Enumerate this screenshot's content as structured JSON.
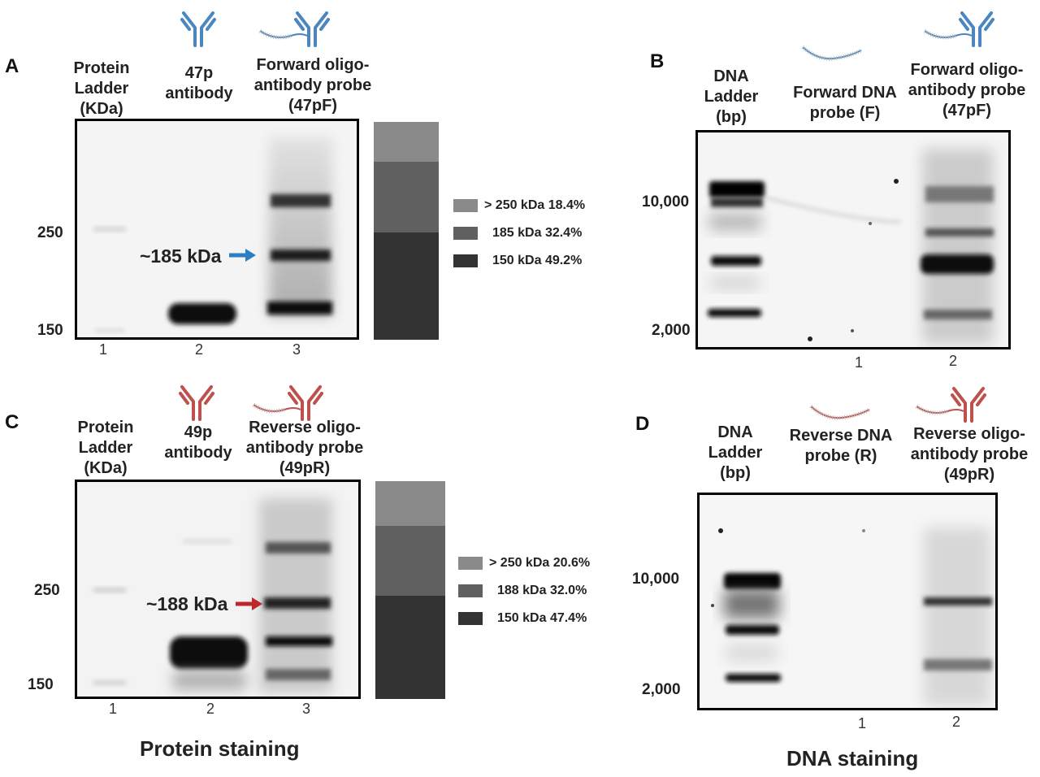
{
  "panels": {
    "A": {
      "letter": "A",
      "headers": {
        "ladder": "Protein\nLadder\n(KDa)",
        "lane2": "47p\nantibody",
        "lane3": "Forward oligo-\nantibody probe\n(47pF)"
      },
      "lanes": [
        "1",
        "2",
        "3"
      ],
      "markers": [
        "250",
        "150"
      ],
      "callout": "~185 kDa",
      "arrow_color": "#2b7fc4",
      "icon_color": "#4a86c0",
      "legend": [
        {
          "label": "> 250 kDa 18.4%",
          "color": "#8a8a8a",
          "percent": 18.4
        },
        {
          "label": "185 kDa 32.4%",
          "color": "#606060",
          "percent": 32.4
        },
        {
          "label": "150 kDa 49.2%",
          "color": "#333333",
          "percent": 49.2
        }
      ]
    },
    "B": {
      "letter": "B",
      "headers": {
        "ladder": "DNA\nLadder\n(bp)",
        "lane1": "Forward DNA\nprobe (F)",
        "lane2": "Forward oligo-\nantibody probe\n(47pF)"
      },
      "lanes": [
        "1",
        "2"
      ],
      "markers": [
        "10,000",
        "2,000"
      ],
      "icon_color": "#4a86c0"
    },
    "C": {
      "letter": "C",
      "headers": {
        "ladder": "Protein\nLadder\n(KDa)",
        "lane2": "49p\nantibody",
        "lane3": "Reverse oligo-\nantibody probe\n(49pR)"
      },
      "lanes": [
        "1",
        "2",
        "3"
      ],
      "markers": [
        "250",
        "150"
      ],
      "callout": "~188 kDa",
      "arrow_color": "#c0272d",
      "icon_color": "#c0504d",
      "legend": [
        {
          "label": "> 250 kDa 20.6%",
          "color": "#8a8a8a",
          "percent": 20.6
        },
        {
          "label": "188 kDa 32.0%",
          "color": "#606060",
          "percent": 32.0
        },
        {
          "label": "150 kDa 47.4%",
          "color": "#333333",
          "percent": 47.4
        }
      ]
    },
    "D": {
      "letter": "D",
      "headers": {
        "ladder": "DNA\nLadder\n(bp)",
        "lane1": "Reverse DNA\nprobe (R)",
        "lane2": "Reverse oligo-\nantibody probe\n(49pR)"
      },
      "lanes": [
        "1",
        "2"
      ],
      "markers": [
        "10,000",
        "2,000"
      ],
      "icon_color": "#c0504d"
    }
  },
  "footers": {
    "protein": "Protein staining",
    "dna": "DNA staining"
  }
}
